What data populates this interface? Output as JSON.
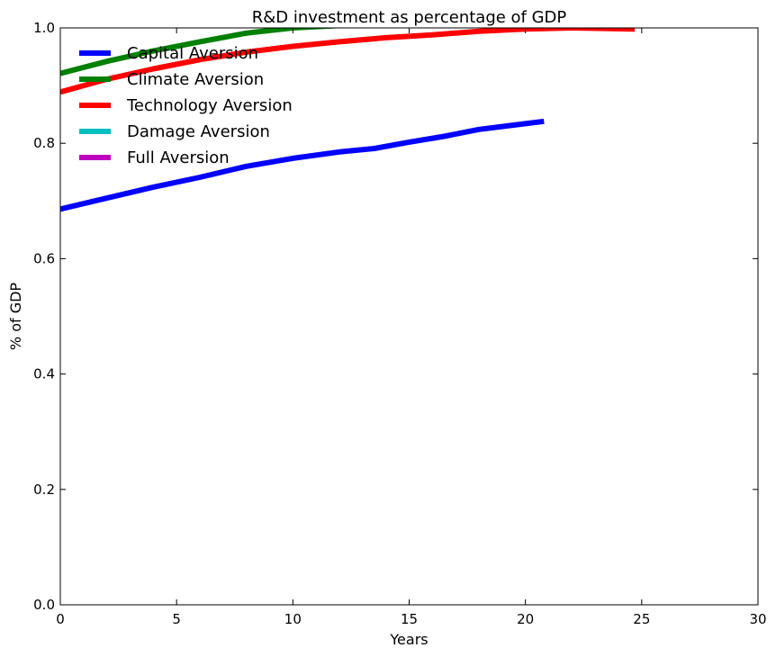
{
  "chart_data": {
    "type": "line",
    "title": "R&D investment as percentage of  GDP",
    "xlabel": "Years",
    "ylabel": "% of GDP",
    "xlim": [
      0,
      30
    ],
    "ylim": [
      0,
      1.0
    ],
    "xticks": [
      0,
      5,
      10,
      15,
      20,
      25,
      30
    ],
    "yticks": [
      0.0,
      0.2,
      0.4,
      0.6,
      0.8,
      1.0
    ],
    "xtick_labels": [
      "0",
      "5",
      "10",
      "15",
      "20",
      "25",
      "30"
    ],
    "ytick_labels": [
      "0.0",
      "0.2",
      "0.4",
      "0.6",
      "0.8",
      "1.0"
    ],
    "legend_position": "top-left",
    "grid": false,
    "series": [
      {
        "name": "Capital Aversion",
        "color": "#0000ff",
        "x": [
          0,
          2,
          4,
          6,
          8,
          10,
          12,
          13.5,
          15,
          16.5,
          18,
          20,
          20.8
        ],
        "y": [
          0.686,
          0.705,
          0.724,
          0.741,
          0.76,
          0.774,
          0.785,
          0.791,
          0.802,
          0.812,
          0.824,
          0.834,
          0.838
        ]
      },
      {
        "name": "Climate Aversion",
        "color": "#008000",
        "x": [
          0,
          2,
          4,
          6,
          8,
          10,
          12
        ],
        "y": [
          0.921,
          0.942,
          0.96,
          0.976,
          0.991,
          1.0,
          1.004
        ]
      },
      {
        "name": "Technology Aversion",
        "color": "#ff0000",
        "x": [
          0,
          2,
          4,
          6,
          8,
          10,
          12,
          14,
          16,
          18,
          20,
          22,
          24.7
        ],
        "y": [
          0.889,
          0.911,
          0.929,
          0.945,
          0.958,
          0.968,
          0.976,
          0.983,
          0.988,
          0.994,
          0.998,
          1.0,
          0.998
        ]
      },
      {
        "name": "Damage Aversion",
        "color": "#00bfbf",
        "x": [],
        "y": []
      },
      {
        "name": "Full Aversion",
        "color": "#bf00bf",
        "x": [],
        "y": []
      }
    ]
  }
}
